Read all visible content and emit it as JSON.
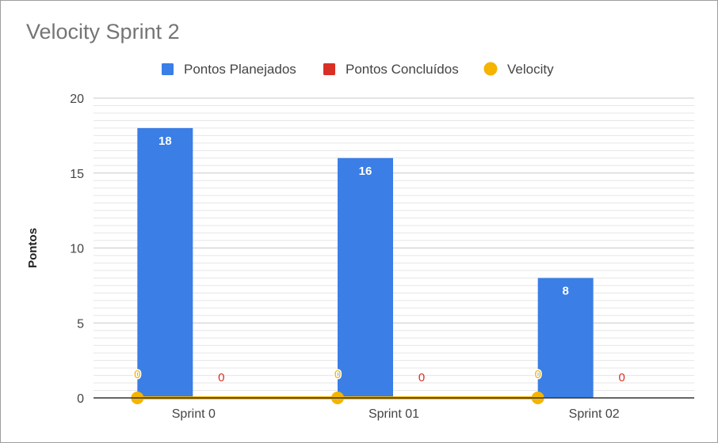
{
  "chart_data": {
    "type": "bar",
    "title": "Velocity Sprint 2",
    "xlabel": "",
    "ylabel": "Pontos",
    "categories": [
      "Sprint 0",
      "Sprint 01",
      "Sprint 02"
    ],
    "ylim": [
      0,
      20
    ],
    "yticks": [
      "0",
      "5",
      "10",
      "15",
      "20"
    ],
    "grid": true,
    "legend_position": "top",
    "series": [
      {
        "name": "Pontos Planejados",
        "type": "bar",
        "color": "#3a7ee6",
        "values": [
          18,
          16,
          8
        ],
        "labels": [
          "18",
          "16",
          "8"
        ]
      },
      {
        "name": "Pontos Concluídos",
        "type": "bar",
        "color": "#d93025",
        "values": [
          0,
          0,
          0
        ],
        "labels": [
          "0",
          "0",
          "0"
        ]
      },
      {
        "name": "Velocity",
        "type": "line",
        "color": "#f4b400",
        "values": [
          0,
          0,
          0
        ],
        "labels": [
          "0",
          "0",
          "0"
        ]
      }
    ]
  }
}
